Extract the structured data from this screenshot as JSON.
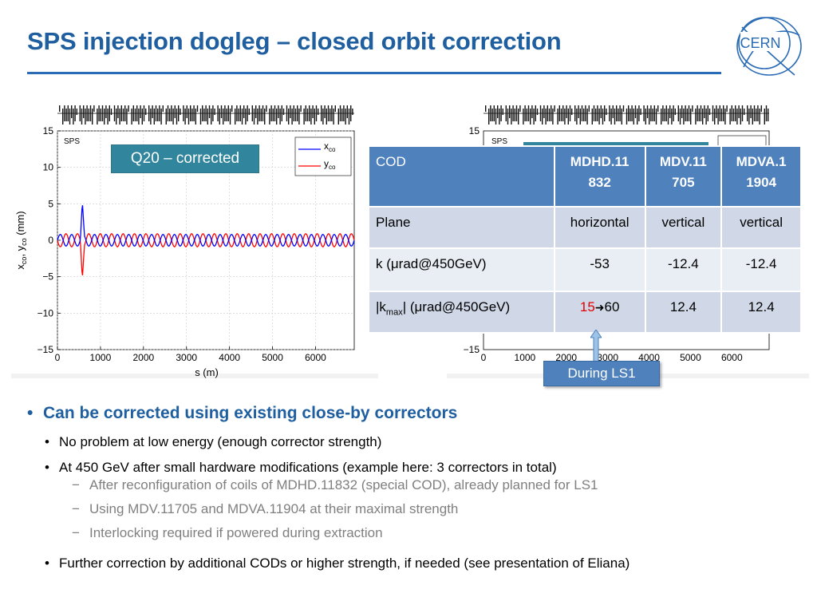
{
  "slide": {
    "title": "SPS injection dogleg – closed orbit correction",
    "logo_text": "CERN"
  },
  "left_plot_label": "Q20 – corrected",
  "ls1_label": "During LS1",
  "chart_data": [
    {
      "type": "line",
      "title": "",
      "panel_label": "SPS",
      "xlabel": "s (m)",
      "ylabel": "x_co, y_co (mm)",
      "xlim": [
        0,
        6900
      ],
      "ylim": [
        -15,
        15
      ],
      "xticks": [
        "0",
        "1000",
        "2000",
        "3000",
        "4000",
        "5000",
        "6000"
      ],
      "yticks": [
        "15",
        "10",
        "5",
        "0",
        "−5",
        "−10",
        "−15"
      ],
      "legend_position": "top-right",
      "series": [
        {
          "name": "x_co",
          "color": "#0000ff",
          "spike_s": 580,
          "spike_value": 5.3,
          "oscillation_amplitude": 0.8
        },
        {
          "name": "y_co",
          "color": "#ff0000",
          "spike_s": 580,
          "spike_value": -5.3,
          "oscillation_amplitude": 0.9
        }
      ]
    },
    {
      "type": "line",
      "title": "",
      "panel_label": "SPS",
      "xlabel": "",
      "ylabel": "",
      "xlim": [
        0,
        6900
      ],
      "ylim": [
        -15,
        15
      ],
      "xticks": [
        "0",
        "1000",
        "2000",
        "3000",
        "4000",
        "5000",
        "6000"
      ],
      "yticks": [
        "15",
        "−15"
      ],
      "series": []
    }
  ],
  "table": {
    "headers": [
      "COD",
      "MDHD.11 832",
      "MDV.11 705",
      "MDVA.1 1904"
    ],
    "rows": [
      {
        "label": "Plane",
        "values": [
          "horizontal",
          "vertical",
          "vertical"
        ]
      },
      {
        "label": "k  (μrad@450GeV)",
        "values": [
          "-53",
          "-12.4",
          "-12.4"
        ]
      }
    ],
    "kmax_row": {
      "label_pre": "|k",
      "label_sub": "max",
      "label_post": "| (μrad@450GeV)",
      "first_old": "15",
      "first_new": "60",
      "values": [
        "12.4",
        "12.4"
      ]
    }
  },
  "bullets": {
    "main": "Can be corrected using existing close-by correctors",
    "l1": "No problem at low energy (enough corrector strength)",
    "l2": "At 450 GeV after small hardware modifications (example here: 3 correctors in total)",
    "l2_sub1": "After reconfiguration of coils of MDHD.11832 (special COD), already planned for LS1",
    "l2_sub2": "Using MDV.11705 and MDVA.11904 at their maximal strength",
    "l2_sub3": "Interlocking required if powered during extraction",
    "l3": "Further correction by additional CODs or higher strength, if needed (see presentation of Eliana)"
  },
  "colors": {
    "title_blue": "#1f5fa0",
    "teal": "#31859c",
    "header_blue": "#4f81bd",
    "row_light": "#d0d8e8",
    "row_lighter": "#e9edf4",
    "accent_red": "#e00000"
  }
}
